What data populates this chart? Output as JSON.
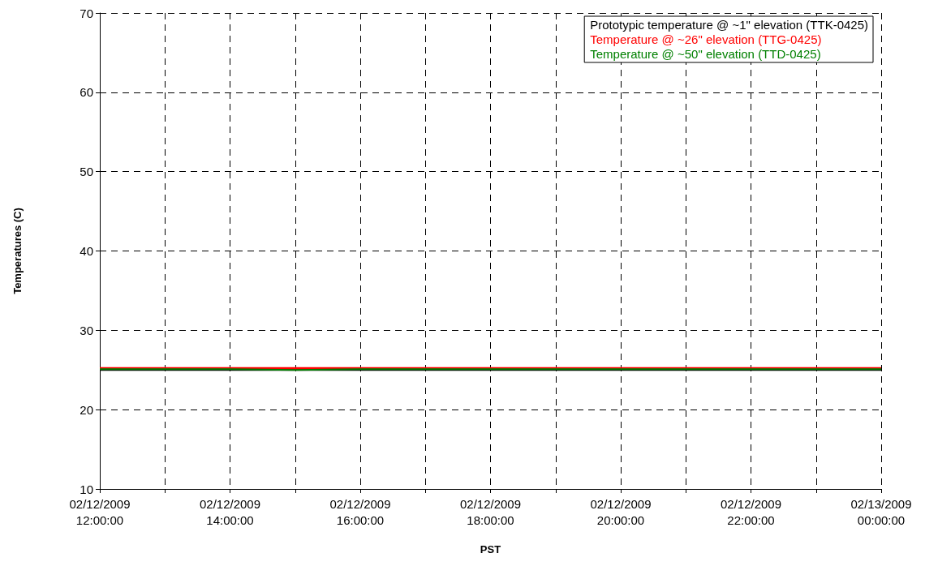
{
  "chart_data": {
    "type": "line",
    "xlabel": "PST",
    "ylabel": "Temperatures (C)",
    "x": [
      "2009-02-12T12:00",
      "2009-02-12T13:00",
      "2009-02-12T14:00",
      "2009-02-12T15:00",
      "2009-02-12T16:00",
      "2009-02-12T17:00",
      "2009-02-12T18:00",
      "2009-02-12T19:00",
      "2009-02-12T20:00",
      "2009-02-12T21:00",
      "2009-02-12T22:00",
      "2009-02-12T23:00",
      "2009-02-13T00:00"
    ],
    "series": [
      {
        "name": "Prototypic temperature @ ~1\" elevation (TTK-0425)",
        "color": "#000000",
        "values": [
          25.1,
          25.1,
          25.1,
          25.1,
          25.1,
          25.1,
          25.1,
          25.1,
          25.1,
          25.1,
          25.1,
          25.1,
          25.1
        ]
      },
      {
        "name": "Temperature @ ~26\" elevation (TTG-0425)",
        "color": "#ff0000",
        "values": [
          25.2,
          25.2,
          25.2,
          25.2,
          25.2,
          25.2,
          25.2,
          25.2,
          25.2,
          25.2,
          25.2,
          25.2,
          25.2
        ]
      },
      {
        "name": "Temperature @ ~50\" elevation (TTD-0425)",
        "color": "#008000",
        "values": [
          25.1,
          25.1,
          25.1,
          25.0,
          25.1,
          25.1,
          25.1,
          25.1,
          25.1,
          25.1,
          25.1,
          25.1,
          25.1
        ]
      }
    ],
    "xlim": [
      "2009-02-12T12:00",
      "2009-02-13T00:00"
    ],
    "xticks": [
      {
        "value": "2009-02-12T12:00",
        "label": "02/12/2009\n12:00:00"
      },
      {
        "value": "2009-02-12T13:00",
        "label": null
      },
      {
        "value": "2009-02-12T14:00",
        "label": "02/12/2009\n14:00:00"
      },
      {
        "value": "2009-02-12T15:00",
        "label": null
      },
      {
        "value": "2009-02-12T16:00",
        "label": "02/12/2009\n16:00:00"
      },
      {
        "value": "2009-02-12T17:00",
        "label": null
      },
      {
        "value": "2009-02-12T18:00",
        "label": "02/12/2009\n18:00:00"
      },
      {
        "value": "2009-02-12T19:00",
        "label": null
      },
      {
        "value": "2009-02-12T20:00",
        "label": "02/12/2009\n20:00:00"
      },
      {
        "value": "2009-02-12T21:00",
        "label": null
      },
      {
        "value": "2009-02-12T22:00",
        "label": "02/12/2009\n22:00:00"
      },
      {
        "value": "2009-02-12T23:00",
        "label": null
      },
      {
        "value": "2009-02-13T00:00",
        "label": "02/13/2009\n00:00:00"
      }
    ],
    "ylim": [
      10,
      70
    ],
    "yticks": [
      10,
      20,
      30,
      40,
      50,
      60,
      70
    ],
    "grid": true,
    "legend": "top right",
    "marker": "none",
    "line_style": "solid"
  }
}
